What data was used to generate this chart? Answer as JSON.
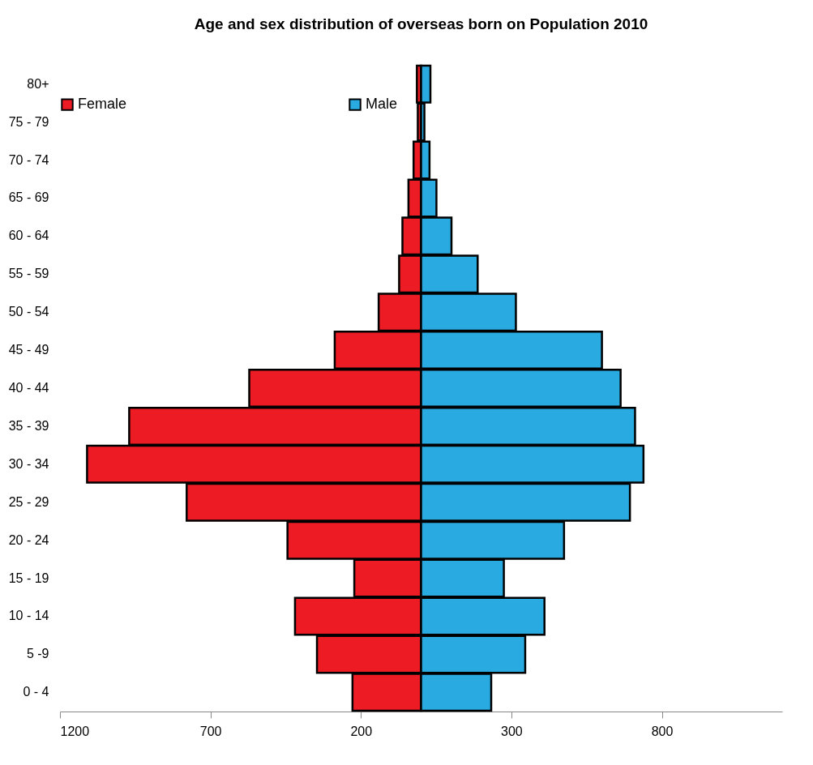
{
  "chart_data": {
    "type": "bar",
    "orientation": "horizontal",
    "title": "Age and sex distribution of overseas born on Population 2010",
    "categories": [
      "80+",
      "75 - 79",
      "70 - 74",
      "65 - 69",
      "60 - 64",
      "55 - 59",
      "50 - 54",
      "45 - 49",
      "40 - 44",
      "35 - 39",
      "30 - 34",
      "25 - 29",
      "20 - 24",
      "15 - 19",
      "10 - 14",
      "5 -9",
      "0 - 4"
    ],
    "series": [
      {
        "name": "Female",
        "color": "#ed1c24",
        "values": [
          -14,
          -11,
          -25,
          -42,
          -62,
          -73,
          -141,
          -287,
          -571,
          -970,
          -1110,
          -779,
          -444,
          -222,
          -419,
          -346,
          -228
        ]
      },
      {
        "name": "Male",
        "color": "#29abe2",
        "values": [
          31,
          11,
          28,
          51,
          101,
          188,
          315,
          601,
          663,
          711,
          739,
          694,
          475,
          275,
          410,
          346,
          233
        ]
      }
    ],
    "xlim": [
      -1200,
      1200
    ],
    "xticks": [
      {
        "value": -1200,
        "label": "1200"
      },
      {
        "value": -700,
        "label": "700"
      },
      {
        "value": -200,
        "label": "200"
      },
      300,
      800
    ],
    "grid": false,
    "legend": "top",
    "stacked": true
  }
}
